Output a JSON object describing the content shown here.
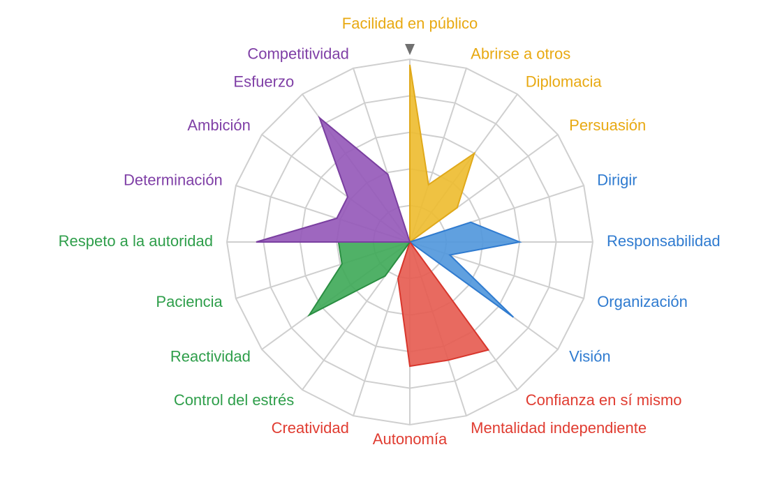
{
  "chart_data": {
    "type": "radar",
    "scale": {
      "min": 0,
      "max": 5,
      "rings": 5
    },
    "categories": [
      {
        "label": "Facilidad en público",
        "group": "yellow",
        "value": 4.85
      },
      {
        "label": "Abrirse a otros",
        "group": "yellow",
        "value": 1.65
      },
      {
        "label": "Diplomacia",
        "group": "yellow",
        "value": 3.0
      },
      {
        "label": "Persuasión",
        "group": "yellow",
        "value": 1.6
      },
      {
        "label": "Dirigir",
        "group": "blue",
        "value": 1.75
      },
      {
        "label": "Responsabilidad",
        "group": "blue",
        "value": 3.0
      },
      {
        "label": "Responsabilidad",
        "group": "blue",
        "value": 3.0
      },
      {
        "label": "Organización",
        "group": "blue",
        "value": 1.15
      },
      {
        "label": "Visión",
        "group": "blue",
        "value": 3.5
      },
      {
        "label": "Confianza en sí mismo",
        "group": "red",
        "value": 3.65
      },
      {
        "label": "Mentalidad independiente",
        "group": "red",
        "value": 3.4
      },
      {
        "label": "Autonomía",
        "group": "red",
        "value": 3.4
      },
      {
        "label": "Creatividad",
        "group": "red",
        "value": 1.05
      },
      {
        "label": "Control del estrés",
        "group": "green",
        "value": 1.15
      },
      {
        "label": "Reactividad",
        "group": "green",
        "value": 3.4
      },
      {
        "label": "Paciencia",
        "group": "green",
        "value": 1.95
      },
      {
        "label": "Respeto a la autoridad",
        "group": "green",
        "value": 1.95
      },
      {
        "label": "Respeto a la autoridad",
        "group": "purple",
        "value": 4.2
      },
      {
        "label": "Determinación",
        "group": "purple",
        "value": 2.1
      },
      {
        "label": "Ambición",
        "group": "purple",
        "value": 2.1
      },
      {
        "label": "Esfuerzo",
        "group": "purple",
        "value": 4.2
      },
      {
        "label": "Competitividad",
        "group": "purple",
        "value": 1.95
      }
    ],
    "groups": {
      "yellow": {
        "fill": "#EDBB2E",
        "stroke": "#E0A91A"
      },
      "blue": {
        "fill": "#4F96DC",
        "stroke": "#2F7BD0"
      },
      "red": {
        "fill": "#E65A4F",
        "stroke": "#D8362C"
      },
      "green": {
        "fill": "#3DA856",
        "stroke": "#2A8E42"
      },
      "purple": {
        "fill": "#9457B8",
        "stroke": "#7A3FA0"
      }
    },
    "label_colors": {
      "yellow": "#E8A912",
      "blue": "#2F7BD0",
      "red": "#E03C31",
      "green": "#2E9E4A",
      "purple": "#7F3FA6"
    },
    "grid": true,
    "grid_color": "#CFCFCF",
    "marker_color": "#707070"
  }
}
